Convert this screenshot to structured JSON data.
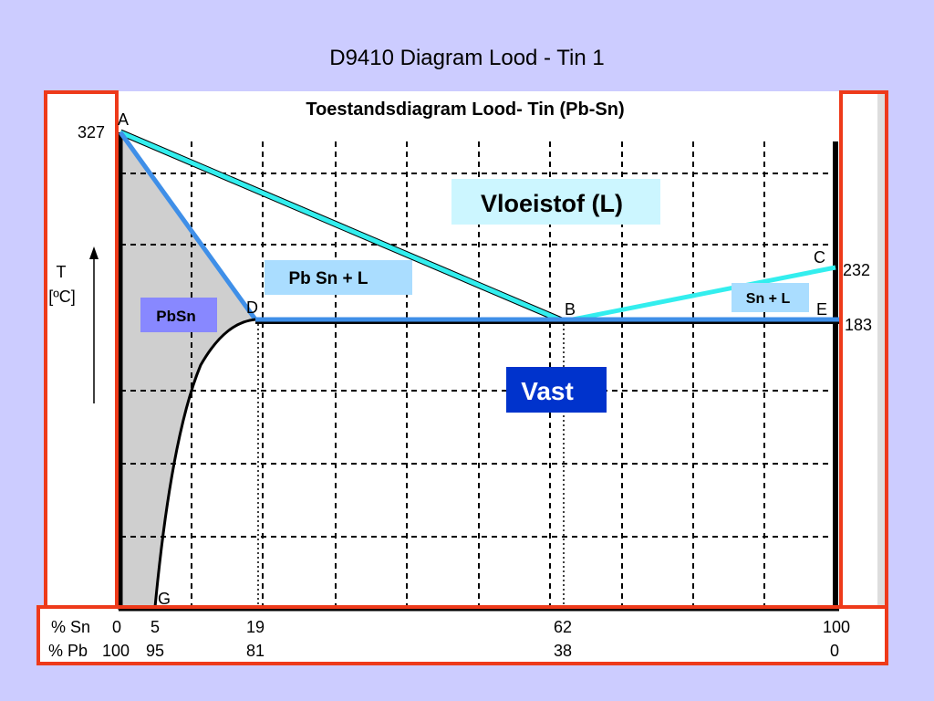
{
  "slide": {
    "title": "D9410 Diagram Lood - Tin 1"
  },
  "diagram": {
    "title": "Toestandsdiagram Lood- Tin (Pb-Sn)",
    "y_axis_label_line1": "T",
    "y_axis_label_line2": "[ºC]",
    "temperatures": {
      "top_left": "327",
      "right_c": "232",
      "right_e": "183"
    },
    "points": {
      "a": "A",
      "b": "B",
      "c": "C",
      "d": "D",
      "e": "E",
      "g": "G"
    },
    "regions": {
      "liquid": "Vloeistof (L)",
      "pbsn_plus_l": "Pb Sn + L",
      "sn_plus_l": "Sn + L",
      "pbsn": "PbSn",
      "solid": "Vast"
    },
    "composition": {
      "sn_label": "% Sn",
      "pb_label": "% Pb",
      "sn_values": [
        "0",
        "5",
        "19",
        "62",
        "100"
      ],
      "pb_values": [
        "100",
        "95",
        "81",
        "38",
        "0"
      ]
    },
    "colors": {
      "liquidus": "#33eeee",
      "solidus": "#3f8fe8",
      "frame": "#ee3a1a",
      "solid_region": "#0033cc",
      "pbsn_box": "#8888ff",
      "label_box": "#aaddff"
    }
  }
}
